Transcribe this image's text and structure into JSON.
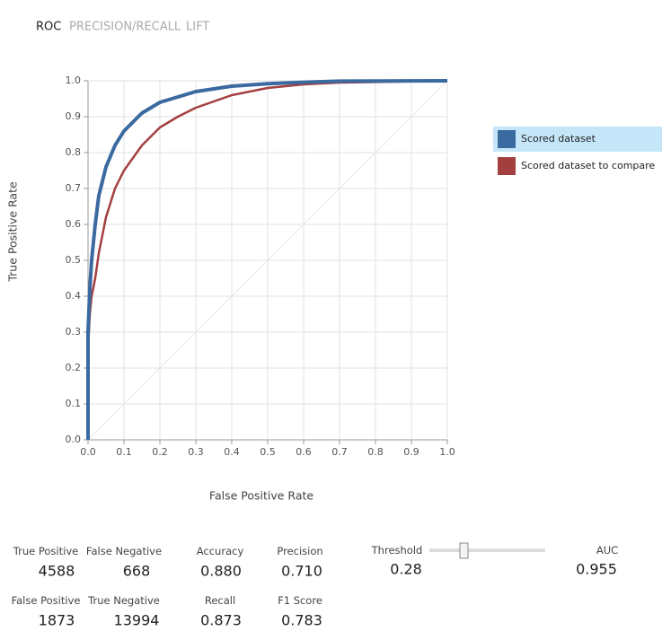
{
  "tabs": [
    "ROC",
    "PRECISION/RECALL",
    "LIFT"
  ],
  "chart_data": {
    "type": "line",
    "xlabel": "False Positive Rate",
    "ylabel": "True Positive Rate",
    "xlim": [
      0,
      1
    ],
    "ylim": [
      0,
      1
    ],
    "xticks": [
      {
        "value": 0,
        "label": "0.0"
      },
      0.1,
      0.2,
      0.3,
      0.4,
      0.5,
      0.6,
      0.7,
      0.8,
      0.9,
      {
        "value": 1,
        "label": "1.0"
      }
    ],
    "yticks": [
      {
        "value": 0,
        "label": "0.0"
      },
      0.1,
      0.2,
      0.3,
      0.4,
      0.5,
      0.6,
      0.7,
      0.8,
      0.9,
      {
        "value": 1,
        "label": "1.0"
      }
    ],
    "grid": true,
    "series": [
      {
        "name": "Scored dataset",
        "color": "#3b6aa0",
        "x": [
          0,
          0,
          0.005,
          0.01,
          0.02,
          0.03,
          0.05,
          0.075,
          0.1,
          0.15,
          0.2,
          0.3,
          0.4,
          0.5,
          0.6,
          0.7,
          1
        ],
        "values": [
          0,
          0.3,
          0.42,
          0.5,
          0.6,
          0.68,
          0.76,
          0.82,
          0.86,
          0.91,
          0.94,
          0.97,
          0.985,
          0.992,
          0.996,
          0.999,
          1
        ]
      },
      {
        "name": "Scored dataset to compare",
        "color": "#a3403f",
        "x": [
          0,
          0,
          0.005,
          0.01,
          0.02,
          0.03,
          0.05,
          0.075,
          0.1,
          0.15,
          0.2,
          0.25,
          0.3,
          0.4,
          0.5,
          0.6,
          0.7,
          1
        ],
        "values": [
          0,
          0.25,
          0.35,
          0.4,
          0.45,
          0.52,
          0.62,
          0.7,
          0.75,
          0.82,
          0.87,
          0.9,
          0.925,
          0.96,
          0.98,
          0.99,
          0.995,
          1
        ]
      }
    ]
  },
  "metrics": [
    [
      {
        "label": "True Positive",
        "value": "4588"
      },
      {
        "label": "False Negative",
        "value": "668"
      },
      {
        "label": "Accuracy",
        "value": "0.880"
      },
      {
        "label": "Precision",
        "value": "0.710"
      }
    ],
    [
      {
        "label": "False Positive",
        "value": "1873"
      },
      {
        "label": "True Negative",
        "value": "13994"
      },
      {
        "label": "Recall",
        "value": "0.873"
      },
      {
        "label": "F1 Score",
        "value": "0.783"
      }
    ]
  ],
  "threshold": {
    "label": "Threshold",
    "value": "0.28"
  },
  "auc": {
    "label": "AUC",
    "value": "0.955"
  }
}
